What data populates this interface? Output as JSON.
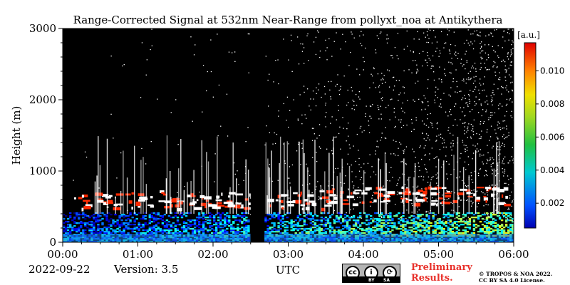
{
  "chart_data": {
    "type": "heatmap",
    "title": "Range-Corrected Signal at 532nm Near-Range from pollyxt_noa at Antikythera",
    "xlabel": "UTC",
    "ylabel": "Height (m)",
    "x_ticks": [
      "00:00",
      "01:00",
      "02:00",
      "03:00",
      "04:00",
      "05:00",
      "06:00"
    ],
    "x_range_hours": [
      0,
      6
    ],
    "y_ticks": [
      0,
      1000,
      2000,
      3000
    ],
    "ylim": [
      0,
      3000
    ],
    "colorbar": {
      "label": "[a.u.]",
      "ticks": [
        "0.002",
        "0.004",
        "0.006",
        "0.008",
        "0.010"
      ],
      "tick_values": [
        0.002,
        0.004,
        0.006,
        0.008,
        0.01
      ],
      "range": [
        0.0005,
        0.0117
      ],
      "colormap": "jet"
    },
    "background_color": "#000000",
    "data_gaps": [
      [
        2.5,
        2.68
      ]
    ],
    "structures": [
      {
        "feature": "near-surface aerosol layer",
        "height_range": [
          0,
          400
        ],
        "typical_value": 0.004
      },
      {
        "feature": "residual layer / cloud-like features",
        "height_range": [
          450,
          700
        ],
        "typical_value": 0.01
      },
      {
        "feature": "background noise increasing after sunrise",
        "time_range": [
          4.0,
          6.0
        ]
      }
    ],
    "grid": false
  },
  "footer": {
    "date": "2022-09-22",
    "version": "Version: 3.5",
    "preliminary_line1": "Preliminary",
    "preliminary_line2": "Results.",
    "copyright_line1": "© TROPOS & NOA 2022.",
    "copyright_line2": "CC BY SA 4.0 License."
  },
  "license_badge": {
    "glyphs": [
      "cc",
      "i",
      "⟳"
    ],
    "labels": [
      "BY",
      "SA"
    ]
  },
  "colors": {
    "preliminary": "#e8312b",
    "background": "#000000",
    "noise": "#ffffff"
  }
}
